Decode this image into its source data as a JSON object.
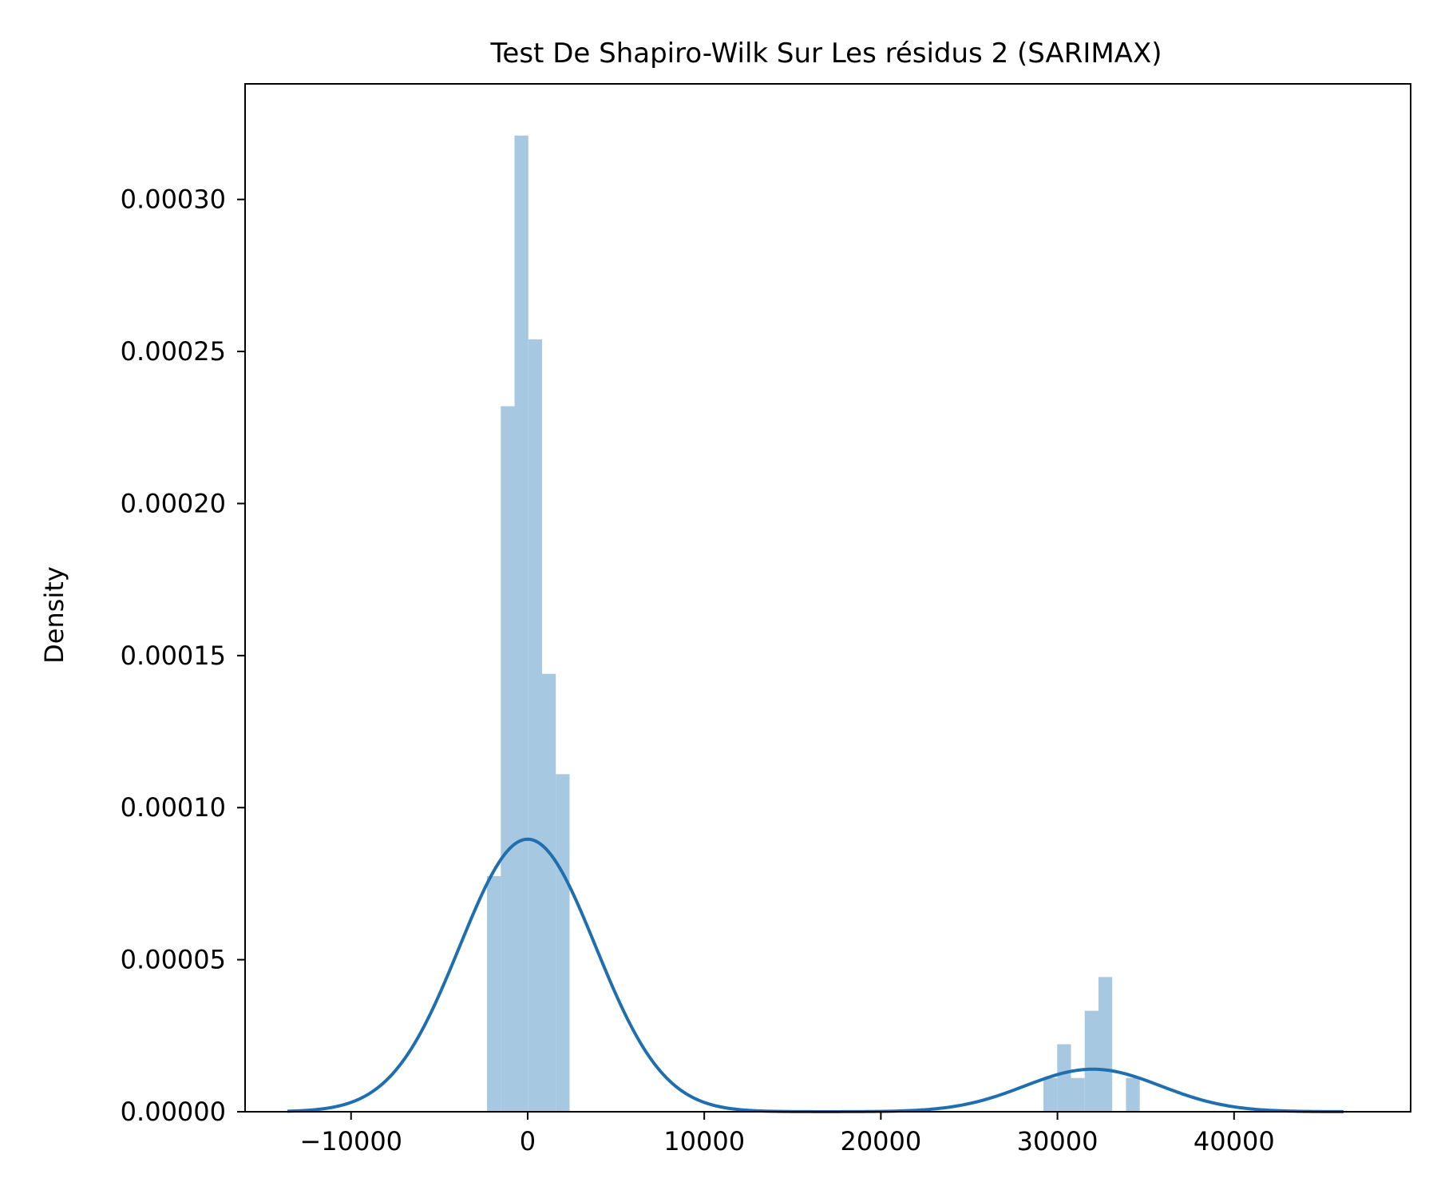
{
  "chart_data": {
    "type": "bar",
    "title": "Test De Shapiro-Wilk Sur Les résidus 2 (SARIMAX)",
    "xlabel": "",
    "ylabel": "Density",
    "xlim": [
      -16000,
      50000
    ],
    "ylim": [
      0,
      0.000338
    ],
    "xticks": [
      -10000,
      0,
      10000,
      20000,
      30000,
      40000
    ],
    "xtick_labels": [
      "−10000",
      "0",
      "10000",
      "20000",
      "30000",
      "40000"
    ],
    "yticks": [
      0,
      5e-05,
      0.0001,
      0.00015,
      0.0002,
      0.00025,
      0.0003
    ],
    "ytick_labels": [
      "0.00000",
      "0.00005",
      "0.00010",
      "0.00015",
      "0.00020",
      "0.00025",
      "0.00030"
    ],
    "grid": false,
    "histogram": {
      "color": "#a6c8e1",
      "bin_width": 779,
      "bin_starts": [
        -2300,
        -1521,
        -742,
        37,
        816,
        1595,
        29207,
        29986,
        30765,
        31544,
        32323,
        33102,
        33881
      ],
      "densities": [
        7.75e-05,
        0.000232,
        0.000321,
        0.000254,
        0.000144,
        0.000111,
        1.11e-05,
        2.22e-05,
        1.11e-05,
        3.32e-05,
        4.43e-05,
        0.0,
        1.11e-05
      ]
    },
    "kde": {
      "color": "#1f6fb0",
      "components": [
        {
          "weight": 0.865,
          "mean": 0,
          "sd": 3850
        },
        {
          "weight": 0.135,
          "mean": 32000,
          "sd": 3850
        }
      ],
      "x_range": [
        -13600,
        46200
      ]
    }
  }
}
